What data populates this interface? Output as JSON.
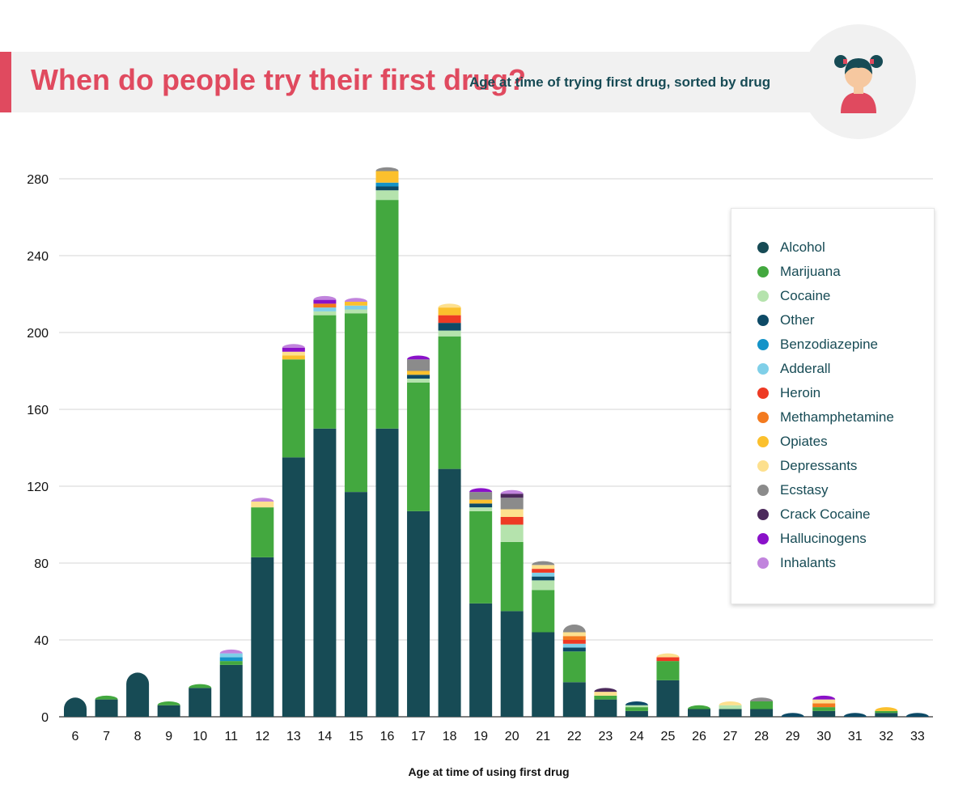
{
  "header": {
    "title": "When do people try their first drug?",
    "subtitle": "Age at time of trying first drug, sorted by drug"
  },
  "chart_data": {
    "type": "bar",
    "stacked": true,
    "xlabel": "Age at time of using first drug",
    "ylabel": "",
    "ylim": [
      0,
      290
    ],
    "yticks": [
      0,
      40,
      80,
      120,
      160,
      200,
      240,
      280
    ],
    "grid": true,
    "legend_position": "right",
    "categories": [
      "6",
      "7",
      "8",
      "9",
      "10",
      "11",
      "12",
      "13",
      "14",
      "15",
      "16",
      "17",
      "18",
      "19",
      "20",
      "21",
      "22",
      "23",
      "24",
      "25",
      "26",
      "27",
      "28",
      "29",
      "30",
      "31",
      "32",
      "33"
    ],
    "series": [
      {
        "name": "Alcohol",
        "color": "#174b55",
        "values": [
          10,
          9,
          23,
          6,
          15,
          27,
          83,
          135,
          150,
          117,
          150,
          107,
          129,
          59,
          55,
          44,
          18,
          9,
          3,
          19,
          4,
          4,
          4,
          0,
          3,
          0,
          2,
          0
        ]
      },
      {
        "name": "Marijuana",
        "color": "#43a83f",
        "values": [
          0,
          2,
          0,
          2,
          2,
          2,
          26,
          51,
          59,
          93,
          119,
          67,
          69,
          48,
          36,
          22,
          16,
          2,
          2,
          10,
          2,
          0,
          4,
          0,
          2,
          0,
          1,
          0
        ]
      },
      {
        "name": "Cocaine",
        "color": "#b5e3ad",
        "values": [
          0,
          0,
          0,
          0,
          0,
          0,
          0,
          0,
          2,
          2,
          5,
          2,
          3,
          2,
          9,
          5,
          0,
          0,
          1,
          0,
          0,
          2,
          0,
          0,
          0,
          0,
          0,
          0
        ]
      },
      {
        "name": "Other",
        "color": "#0d4a66",
        "values": [
          0,
          0,
          0,
          0,
          0,
          0,
          0,
          0,
          0,
          0,
          2,
          2,
          4,
          2,
          0,
          2,
          2,
          0,
          2,
          0,
          0,
          0,
          0,
          2,
          0,
          2,
          0,
          2
        ]
      },
      {
        "name": "Benzodiazepine",
        "color": "#1493c8",
        "values": [
          0,
          0,
          0,
          0,
          0,
          2,
          0,
          0,
          0,
          0,
          2,
          0,
          0,
          0,
          0,
          0,
          0,
          0,
          0,
          0,
          0,
          0,
          0,
          0,
          0,
          0,
          0,
          0
        ]
      },
      {
        "name": "Adderall",
        "color": "#7fcfe8",
        "values": [
          0,
          0,
          0,
          0,
          0,
          2,
          0,
          0,
          2,
          2,
          0,
          0,
          0,
          0,
          0,
          2,
          2,
          0,
          0,
          0,
          0,
          0,
          0,
          0,
          0,
          0,
          0,
          0
        ]
      },
      {
        "name": "Heroin",
        "color": "#ee3a24",
        "values": [
          0,
          0,
          0,
          0,
          0,
          0,
          0,
          0,
          0,
          0,
          0,
          0,
          4,
          0,
          4,
          2,
          2,
          0,
          0,
          2,
          0,
          0,
          0,
          0,
          0,
          0,
          0,
          0
        ]
      },
      {
        "name": "Methamphetamine",
        "color": "#f37a1f",
        "values": [
          0,
          0,
          0,
          0,
          0,
          0,
          0,
          0,
          2,
          0,
          0,
          0,
          0,
          0,
          0,
          0,
          2,
          0,
          0,
          0,
          0,
          0,
          0,
          0,
          2,
          0,
          0,
          0
        ]
      },
      {
        "name": "Opiates",
        "color": "#fbc02d",
        "values": [
          0,
          0,
          0,
          0,
          0,
          0,
          0,
          2,
          0,
          2,
          6,
          2,
          4,
          2,
          0,
          0,
          0,
          0,
          0,
          0,
          0,
          0,
          0,
          0,
          0,
          0,
          2,
          0
        ]
      },
      {
        "name": "Depressants",
        "color": "#fde08e",
        "values": [
          0,
          0,
          0,
          0,
          0,
          0,
          3,
          2,
          0,
          0,
          0,
          0,
          2,
          0,
          4,
          2,
          2,
          2,
          0,
          2,
          0,
          2,
          0,
          0,
          2,
          0,
          0,
          0
        ]
      },
      {
        "name": "Ecstasy",
        "color": "#8b8b8b",
        "values": [
          0,
          0,
          0,
          0,
          0,
          0,
          0,
          0,
          0,
          0,
          2,
          6,
          0,
          4,
          6,
          2,
          4,
          0,
          0,
          0,
          0,
          0,
          2,
          0,
          0,
          0,
          0,
          0
        ]
      },
      {
        "name": "Crack Cocaine",
        "color": "#4c2a5c",
        "values": [
          0,
          0,
          0,
          0,
          0,
          0,
          0,
          0,
          0,
          0,
          0,
          0,
          0,
          0,
          2,
          0,
          0,
          2,
          0,
          0,
          0,
          0,
          0,
          0,
          0,
          0,
          0,
          0
        ]
      },
      {
        "name": "Hallucinogens",
        "color": "#8a11c9",
        "values": [
          0,
          0,
          0,
          0,
          0,
          0,
          0,
          2,
          2,
          0,
          0,
          2,
          0,
          2,
          0,
          0,
          0,
          0,
          0,
          0,
          0,
          0,
          0,
          0,
          2,
          0,
          0,
          0
        ]
      },
      {
        "name": "Inhalants",
        "color": "#c184dd",
        "values": [
          0,
          0,
          0,
          0,
          0,
          2,
          2,
          2,
          2,
          2,
          0,
          0,
          0,
          0,
          2,
          0,
          0,
          0,
          0,
          0,
          0,
          0,
          0,
          0,
          0,
          0,
          0,
          0
        ]
      }
    ]
  }
}
